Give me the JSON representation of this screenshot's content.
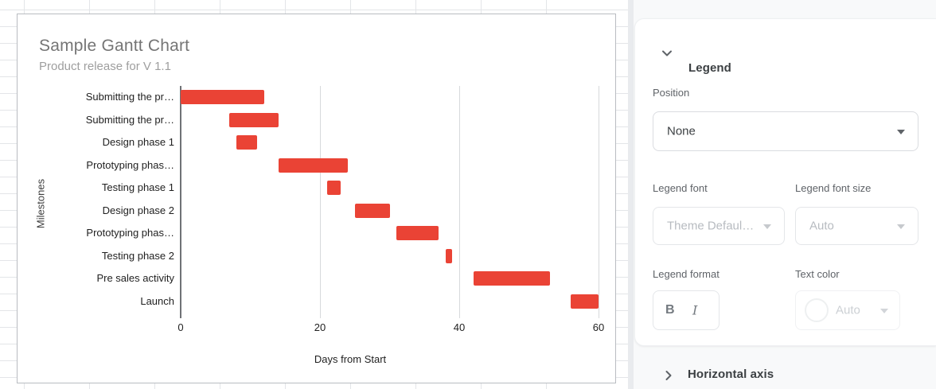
{
  "chart_data": {
    "type": "bar",
    "orientation": "horizontal-gantt",
    "title": "Sample Gantt Chart",
    "subtitle": "Product release for V 1.1",
    "xlabel": "Days from Start",
    "ylabel": "Milestones",
    "xlim": [
      0,
      60
    ],
    "xticks": [
      0,
      20,
      40,
      60
    ],
    "bar_color": "#ea4335",
    "legend_position": "none",
    "rows": [
      {
        "label": "Submitting the pr…",
        "start": 0,
        "end": 12
      },
      {
        "label": "Submitting the pr…",
        "start": 7,
        "end": 14
      },
      {
        "label": "Design phase 1",
        "start": 8,
        "end": 11
      },
      {
        "label": "Prototyping phas…",
        "start": 14,
        "end": 24
      },
      {
        "label": "Testing phase 1",
        "start": 21,
        "end": 23
      },
      {
        "label": "Design phase 2",
        "start": 25,
        "end": 30
      },
      {
        "label": "Prototyping phas…",
        "start": 31,
        "end": 37
      },
      {
        "label": "Testing phase 2",
        "start": 38,
        "end": 39
      },
      {
        "label": "Pre sales activity",
        "start": 42,
        "end": 53
      },
      {
        "label": "Launch",
        "start": 56,
        "end": 60
      }
    ]
  },
  "panel": {
    "legend_section": {
      "title": "Legend"
    },
    "position": {
      "label": "Position",
      "value": "None"
    },
    "legend_font": {
      "label": "Legend font",
      "value": "Theme Defaul…"
    },
    "legend_font_size": {
      "label": "Legend font size",
      "value": "Auto"
    },
    "legend_format": {
      "label": "Legend format",
      "bold": "B",
      "italic": "I"
    },
    "text_color": {
      "label": "Text color",
      "value": "Auto"
    },
    "horizontal_axis_section": {
      "title": "Horizontal axis"
    }
  }
}
